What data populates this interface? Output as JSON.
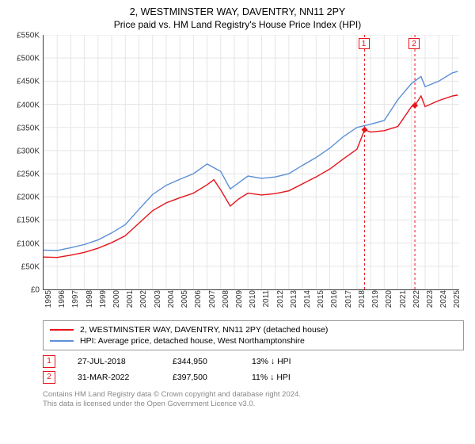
{
  "title": "2, WESTMINSTER WAY, DAVENTRY, NN11 2PY",
  "subtitle": "Price paid vs. HM Land Registry's House Price Index (HPI)",
  "colors": {
    "series_price": "#e6141b",
    "series_hpi": "#5b8fd6",
    "grid": "#e5e5e5",
    "axis": "#444444",
    "flag_border": "#e6141b",
    "footer": "#888888",
    "background": "#ffffff"
  },
  "chart": {
    "type": "line",
    "x_start_year": 1995,
    "x_end_year": 2025.5,
    "y_min": 0,
    "y_max": 550000,
    "y_tick_step": 50000,
    "y_tick_labels": [
      "£0",
      "£50K",
      "£100K",
      "£150K",
      "£200K",
      "£250K",
      "£300K",
      "£350K",
      "£400K",
      "£450K",
      "£500K",
      "£550K"
    ],
    "x_ticks": [
      1995,
      1996,
      1997,
      1998,
      1999,
      2000,
      2001,
      2002,
      2003,
      2004,
      2005,
      2006,
      2007,
      2008,
      2009,
      2010,
      2011,
      2012,
      2013,
      2014,
      2015,
      2016,
      2017,
      2018,
      2019,
      2020,
      2021,
      2022,
      2023,
      2024,
      2025
    ],
    "series": [
      {
        "key": "hpi",
        "label": "HPI: Average price, detached house, West Northamptonshire",
        "color": "#5b8fd6",
        "data": [
          [
            1995,
            85000
          ],
          [
            1996,
            84000
          ],
          [
            1997,
            90000
          ],
          [
            1998,
            97000
          ],
          [
            1999,
            107000
          ],
          [
            2000,
            122000
          ],
          [
            2001,
            140000
          ],
          [
            2002,
            173000
          ],
          [
            2003,
            205000
          ],
          [
            2004,
            225000
          ],
          [
            2005,
            238000
          ],
          [
            2006,
            250000
          ],
          [
            2007,
            271000
          ],
          [
            2008,
            255000
          ],
          [
            2008.7,
            217000
          ],
          [
            2009.3,
            230000
          ],
          [
            2010,
            245000
          ],
          [
            2011,
            240000
          ],
          [
            2012,
            243000
          ],
          [
            2013,
            250000
          ],
          [
            2014,
            268000
          ],
          [
            2015,
            285000
          ],
          [
            2016,
            305000
          ],
          [
            2017,
            330000
          ],
          [
            2018,
            350000
          ],
          [
            2019,
            357000
          ],
          [
            2020,
            365000
          ],
          [
            2021,
            410000
          ],
          [
            2022,
            445000
          ],
          [
            2022.7,
            460000
          ],
          [
            2023,
            438000
          ],
          [
            2024,
            450000
          ],
          [
            2025,
            468000
          ],
          [
            2025.4,
            471000
          ]
        ]
      },
      {
        "key": "price",
        "label": "2, WESTMINSTER WAY, DAVENTRY, NN11 2PY (detached house)",
        "color": "#e6141b",
        "data": [
          [
            1995,
            70000
          ],
          [
            1996,
            69000
          ],
          [
            1997,
            74000
          ],
          [
            1998,
            80000
          ],
          [
            1999,
            89000
          ],
          [
            2000,
            101000
          ],
          [
            2001,
            116000
          ],
          [
            2002,
            143000
          ],
          [
            2003,
            170000
          ],
          [
            2004,
            187000
          ],
          [
            2005,
            198000
          ],
          [
            2006,
            208000
          ],
          [
            2007,
            226000
          ],
          [
            2007.5,
            237000
          ],
          [
            2008,
            215000
          ],
          [
            2008.7,
            180000
          ],
          [
            2009.3,
            195000
          ],
          [
            2010,
            208000
          ],
          [
            2011,
            204000
          ],
          [
            2012,
            207000
          ],
          [
            2013,
            213000
          ],
          [
            2014,
            228000
          ],
          [
            2015,
            243000
          ],
          [
            2016,
            260000
          ],
          [
            2017,
            282000
          ],
          [
            2018,
            303000
          ],
          [
            2018.56,
            344950
          ],
          [
            2019,
            340000
          ],
          [
            2020,
            343000
          ],
          [
            2021,
            352000
          ],
          [
            2022,
            395000
          ],
          [
            2022.25,
            397500
          ],
          [
            2022.7,
            418000
          ],
          [
            2023,
            395000
          ],
          [
            2024,
            408000
          ],
          [
            2025,
            418000
          ],
          [
            2025.4,
            420000
          ]
        ]
      }
    ],
    "transactions": [
      {
        "n": "1",
        "year": 2018.56,
        "value": 344950,
        "date": "27-JUL-2018",
        "price": "£344,950",
        "delta": "13% ↓ HPI"
      },
      {
        "n": "2",
        "year": 2022.25,
        "value": 397500,
        "date": "31-MAR-2022",
        "price": "£397,500",
        "delta": "11% ↓ HPI"
      }
    ]
  },
  "legend_header": "",
  "footer_l1": "Contains HM Land Registry data © Crown copyright and database right 2024.",
  "footer_l2": "This data is licensed under the Open Government Licence v3.0."
}
